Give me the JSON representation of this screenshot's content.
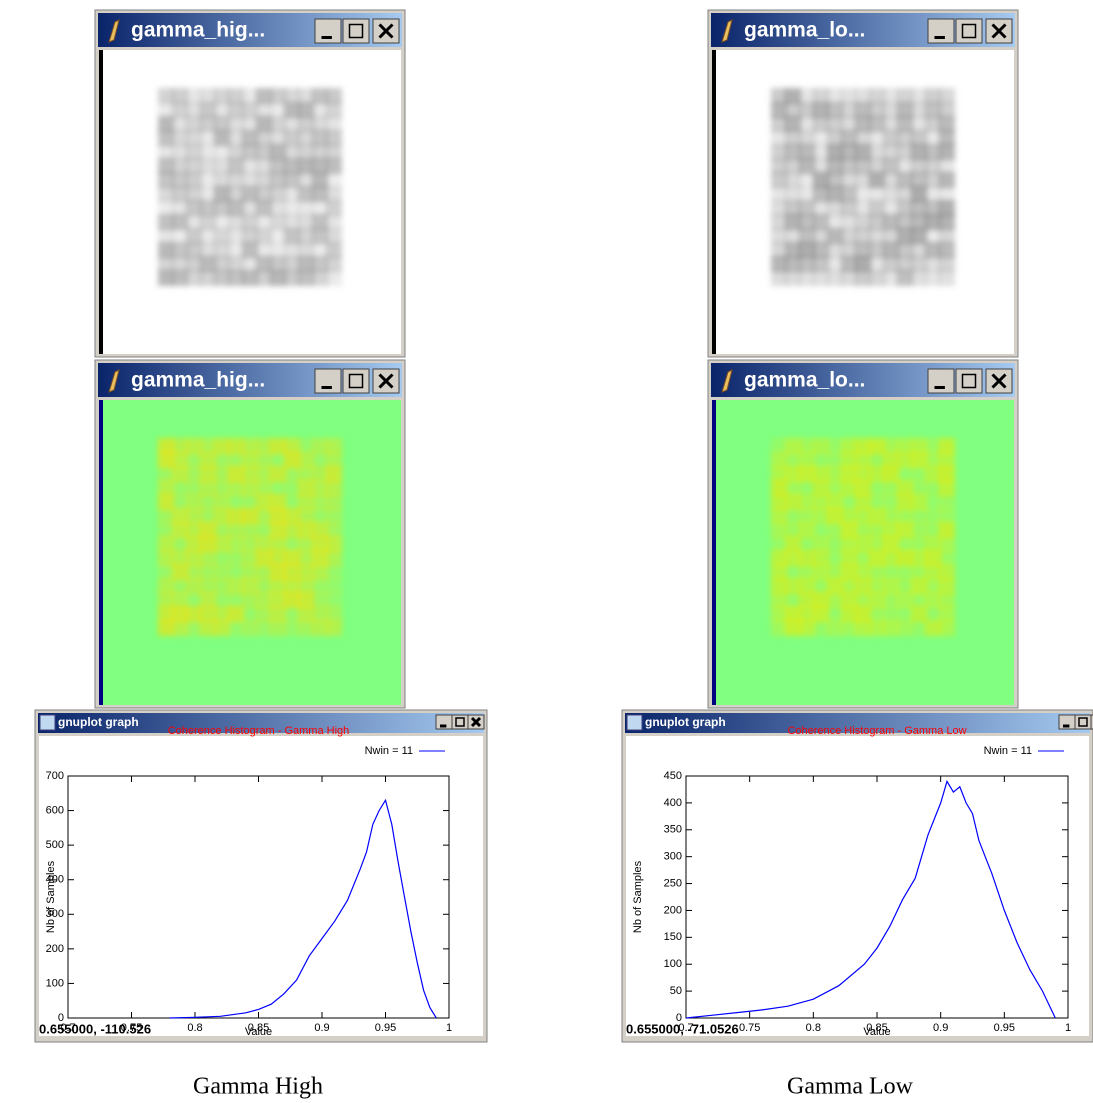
{
  "windows": [
    {
      "title": "gamma_hig..."
    },
    {
      "title": "gamma_hig..."
    },
    {
      "title": "gamma_lo..."
    },
    {
      "title": "gamma_lo..."
    }
  ],
  "plots": [
    {
      "window_title": "gnuplot graph",
      "status": "0.655000, -110.526"
    },
    {
      "window_title": "gnuplot graph",
      "status": "0.655000, -71.0526"
    }
  ],
  "captions": [
    "Gamma High",
    "Gamma Low"
  ],
  "chart_data": [
    {
      "type": "line",
      "title": "Coherence Histogram - Gamma High",
      "xlabel": "Value",
      "ylabel": "Nb of Samples",
      "x": [
        0.78,
        0.8,
        0.82,
        0.84,
        0.85,
        0.86,
        0.87,
        0.88,
        0.89,
        0.9,
        0.91,
        0.92,
        0.93,
        0.935,
        0.94,
        0.945,
        0.95,
        0.955,
        0.96,
        0.965,
        0.97,
        0.975,
        0.98,
        0.985,
        0.99
      ],
      "series": [
        {
          "name": "Nwin = 11",
          "color": "#0000ff",
          "values": [
            0,
            2,
            5,
            15,
            25,
            40,
            70,
            110,
            180,
            230,
            280,
            340,
            430,
            480,
            560,
            600,
            630,
            560,
            450,
            350,
            250,
            160,
            80,
            30,
            0
          ]
        }
      ],
      "xlim": [
        0.7,
        1
      ],
      "ylim": [
        0,
        700
      ],
      "xticks": [
        0.7,
        0.75,
        0.8,
        0.85,
        0.9,
        0.95,
        1
      ],
      "yticks": [
        0,
        100,
        200,
        300,
        400,
        500,
        600,
        700
      ]
    },
    {
      "type": "line",
      "title": "Coherence Histogram - Gamma Low",
      "xlabel": "Value",
      "ylabel": "Nb of Samples",
      "x": [
        0.7,
        0.72,
        0.74,
        0.76,
        0.78,
        0.8,
        0.82,
        0.84,
        0.85,
        0.86,
        0.87,
        0.88,
        0.89,
        0.9,
        0.905,
        0.91,
        0.915,
        0.92,
        0.925,
        0.93,
        0.935,
        0.94,
        0.95,
        0.96,
        0.97,
        0.98,
        0.99
      ],
      "series": [
        {
          "name": "Nwin = 11",
          "color": "#0000ff",
          "values": [
            0,
            5,
            10,
            15,
            22,
            35,
            60,
            100,
            130,
            170,
            220,
            260,
            340,
            400,
            440,
            420,
            430,
            400,
            380,
            330,
            300,
            270,
            200,
            140,
            90,
            50,
            0
          ]
        }
      ],
      "xlim": [
        0.7,
        1
      ],
      "ylim": [
        0,
        450
      ],
      "xticks": [
        0.7,
        0.75,
        0.8,
        0.85,
        0.9,
        0.95,
        1
      ],
      "yticks": [
        0,
        50,
        100,
        150,
        200,
        250,
        300,
        350,
        400,
        450
      ]
    }
  ]
}
